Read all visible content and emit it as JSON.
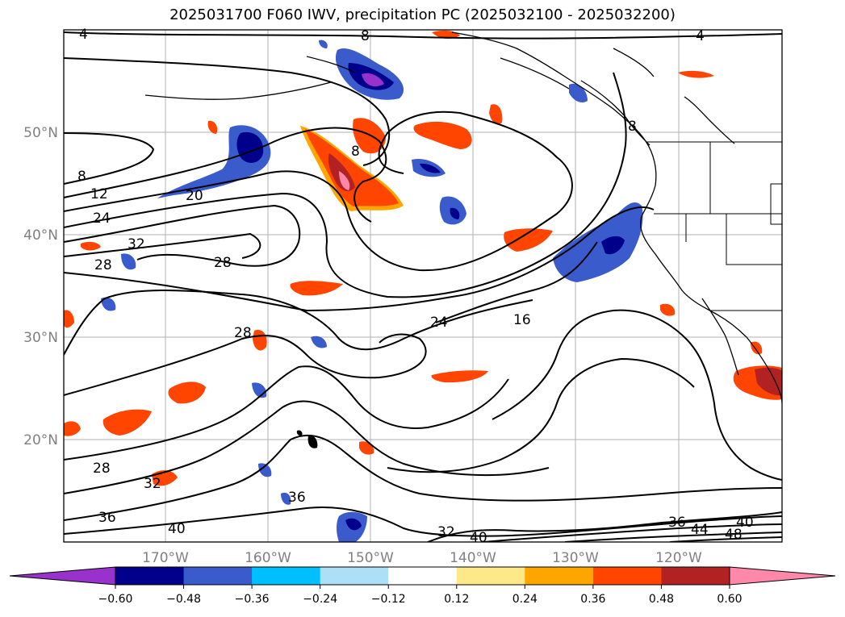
{
  "title": "2025031700 F060 IWV, precipitation PC (2025032100 - 2025032200)",
  "map": {
    "lat_ticks": [
      "50°N",
      "40°N",
      "30°N",
      "20°N"
    ],
    "lon_ticks": [
      "170°W",
      "160°W",
      "150°W",
      "140°W",
      "130°W",
      "120°W"
    ],
    "contour_labels": [
      "4",
      "8",
      "4",
      "8",
      "8",
      "8",
      "12",
      "20",
      "24",
      "32",
      "28",
      "28",
      "28",
      "24",
      "16",
      "28",
      "32",
      "36",
      "36",
      "40",
      "32",
      "40",
      "36",
      "44",
      "40",
      "48"
    ]
  },
  "colorbar": {
    "colors": [
      "#9932CC",
      "#00008B",
      "#3A5BCC",
      "#00BFFF",
      "#ADE0F7",
      "#FFFFFF",
      "#FFE88A",
      "#FFA500",
      "#FF4500",
      "#B22222",
      "#FF88AA"
    ],
    "ticks": [
      "−0.60",
      "−0.48",
      "−0.36",
      "−0.24",
      "−0.12",
      "0.12",
      "0.24",
      "0.36",
      "0.48",
      "0.60"
    ]
  }
}
